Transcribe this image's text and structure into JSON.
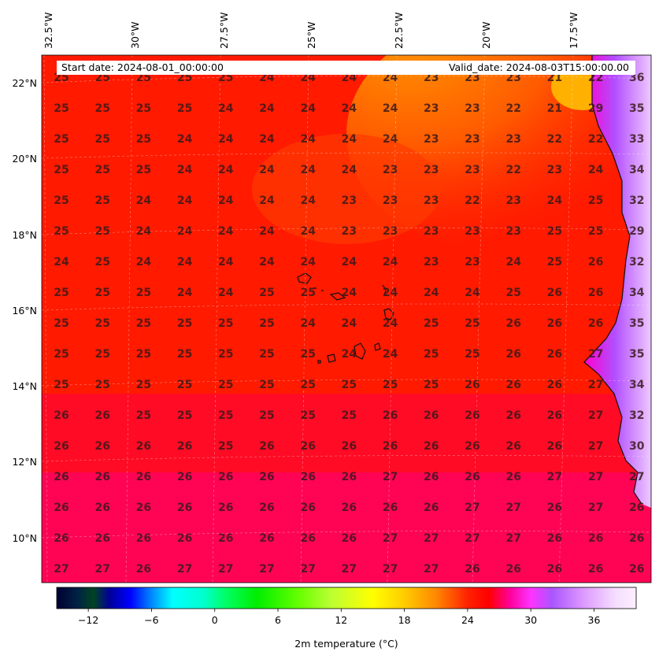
{
  "header": {
    "start_date": "Start date: 2024-08-01_00:00:00",
    "valid_date": "Valid_date: 2024-08-03T15:00:00.00"
  },
  "map": {
    "longitude_labels": [
      "32.5°W",
      "30°W",
      "27.5°W",
      "25°W",
      "22.5°W",
      "20°W",
      "17.5°W"
    ],
    "latitude_labels": [
      "22°N",
      "20°N",
      "18°N",
      "16°N",
      "14°N",
      "12°N",
      "10°N"
    ],
    "gridlines": "dashed"
  },
  "values": [
    [
      "25",
      "25",
      "25",
      "25",
      "25",
      "24",
      "24",
      "24",
      "24",
      "23",
      "23",
      "23",
      "21",
      "22",
      "36"
    ],
    [
      "25",
      "25",
      "25",
      "25",
      "24",
      "24",
      "24",
      "24",
      "24",
      "23",
      "23",
      "22",
      "21",
      "29",
      "35"
    ],
    [
      "25",
      "25",
      "25",
      "24",
      "24",
      "24",
      "24",
      "24",
      "24",
      "23",
      "23",
      "23",
      "22",
      "22",
      "33"
    ],
    [
      "25",
      "25",
      "25",
      "24",
      "24",
      "24",
      "24",
      "24",
      "23",
      "23",
      "23",
      "22",
      "23",
      "24",
      "34"
    ],
    [
      "25",
      "25",
      "24",
      "24",
      "24",
      "24",
      "24",
      "23",
      "23",
      "23",
      "22",
      "23",
      "24",
      "25",
      "32"
    ],
    [
      "25",
      "25",
      "24",
      "24",
      "24",
      "24",
      "24",
      "23",
      "23",
      "23",
      "23",
      "23",
      "25",
      "25",
      "29"
    ],
    [
      "24",
      "25",
      "24",
      "24",
      "24",
      "24",
      "24",
      "24",
      "24",
      "23",
      "23",
      "24",
      "25",
      "26",
      "32"
    ],
    [
      "25",
      "25",
      "25",
      "24",
      "24",
      "25",
      "25",
      "24",
      "24",
      "24",
      "24",
      "25",
      "26",
      "26",
      "34"
    ],
    [
      "25",
      "25",
      "25",
      "25",
      "25",
      "25",
      "24",
      "24",
      "24",
      "25",
      "25",
      "26",
      "26",
      "26",
      "35"
    ],
    [
      "25",
      "25",
      "25",
      "25",
      "25",
      "25",
      "25",
      "24",
      "24",
      "25",
      "25",
      "26",
      "26",
      "27",
      "35"
    ],
    [
      "25",
      "25",
      "25",
      "25",
      "25",
      "25",
      "25",
      "25",
      "25",
      "25",
      "26",
      "26",
      "26",
      "27",
      "34"
    ],
    [
      "26",
      "26",
      "25",
      "25",
      "25",
      "25",
      "25",
      "25",
      "26",
      "26",
      "26",
      "26",
      "26",
      "27",
      "32"
    ],
    [
      "26",
      "26",
      "26",
      "26",
      "25",
      "26",
      "26",
      "26",
      "26",
      "26",
      "26",
      "26",
      "26",
      "27",
      "30"
    ],
    [
      "26",
      "26",
      "26",
      "26",
      "26",
      "26",
      "26",
      "26",
      "27",
      "26",
      "26",
      "26",
      "27",
      "27",
      "27"
    ],
    [
      "26",
      "26",
      "26",
      "26",
      "26",
      "26",
      "26",
      "26",
      "26",
      "26",
      "27",
      "27",
      "26",
      "27",
      "26"
    ],
    [
      "26",
      "26",
      "26",
      "26",
      "26",
      "26",
      "26",
      "26",
      "27",
      "27",
      "27",
      "27",
      "26",
      "26",
      "26"
    ],
    [
      "27",
      "27",
      "26",
      "27",
      "27",
      "27",
      "27",
      "27",
      "27",
      "27",
      "26",
      "26",
      "26",
      "26",
      "26"
    ]
  ],
  "colorbar": {
    "min": -15,
    "max": 40,
    "ticks": [
      "−12",
      "−6",
      "0",
      "6",
      "12",
      "18",
      "24",
      "30",
      "36"
    ],
    "tick_values": [
      -12,
      -6,
      0,
      6,
      12,
      18,
      24,
      30,
      36
    ],
    "label": "2m temperature ($^\\circ$C)",
    "label_display": "2m temperature (°C)",
    "stops": [
      {
        "v": -15,
        "c": "#000033"
      },
      {
        "v": -13,
        "c": "#002244"
      },
      {
        "v": -11.5,
        "c": "#004422"
      },
      {
        "v": -10,
        "c": "#000099"
      },
      {
        "v": -8,
        "c": "#0000ff"
      },
      {
        "v": -6,
        "c": "#0088ff"
      },
      {
        "v": -4,
        "c": "#00ffff"
      },
      {
        "v": -1,
        "c": "#00ffcc"
      },
      {
        "v": 1,
        "c": "#00ff66"
      },
      {
        "v": 4,
        "c": "#00ee00"
      },
      {
        "v": 8,
        "c": "#66ff00"
      },
      {
        "v": 11,
        "c": "#bbff33"
      },
      {
        "v": 15,
        "c": "#ffff00"
      },
      {
        "v": 18,
        "c": "#ffcc00"
      },
      {
        "v": 21,
        "c": "#ff8800"
      },
      {
        "v": 24,
        "c": "#ff2200"
      },
      {
        "v": 26,
        "c": "#ff0000"
      },
      {
        "v": 28,
        "c": "#ff0099"
      },
      {
        "v": 30,
        "c": "#ff33ff"
      },
      {
        "v": 32,
        "c": "#aa55ff"
      },
      {
        "v": 35,
        "c": "#dd99ff"
      },
      {
        "v": 38,
        "c": "#f5ddff"
      },
      {
        "v": 40,
        "c": "#ffeeff"
      }
    ]
  }
}
